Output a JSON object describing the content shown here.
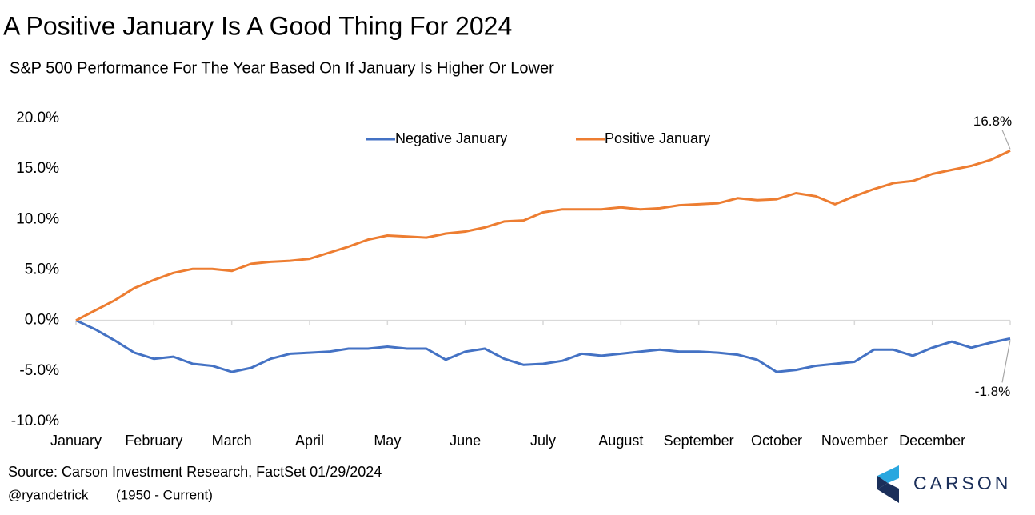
{
  "chart_data": {
    "type": "line",
    "title": "A Positive January Is A Good Thing For 2024",
    "subtitle": "S&P 500 Performance For The Year Based On If January Is Higher Or Lower",
    "categories": [
      "January",
      null,
      null,
      null,
      "February",
      null,
      null,
      null,
      "March",
      null,
      null,
      null,
      "April",
      null,
      null,
      null,
      "May",
      null,
      null,
      null,
      "June",
      null,
      null,
      null,
      "July",
      null,
      null,
      null,
      "August",
      null,
      null,
      null,
      "September",
      null,
      null,
      null,
      "October",
      null,
      null,
      null,
      "November",
      null,
      null,
      null,
      "December",
      null,
      null,
      null,
      null
    ],
    "series": [
      {
        "name": "Negative January",
        "color": "#4472c4",
        "values": [
          0,
          -0.9,
          -2.0,
          -3.2,
          -3.8,
          -3.6,
          -4.3,
          -4.5,
          -5.1,
          -4.7,
          -3.8,
          -3.3,
          -3.2,
          -3.1,
          -2.8,
          -2.8,
          -2.6,
          -2.8,
          -2.8,
          -3.9,
          -3.1,
          -2.8,
          -3.8,
          -4.4,
          -4.3,
          -4.0,
          -3.3,
          -3.5,
          -3.3,
          -3.1,
          -2.9,
          -3.1,
          -3.1,
          -3.2,
          -3.4,
          -3.9,
          -5.1,
          -4.9,
          -4.5,
          -4.3,
          -4.1,
          -2.9,
          -2.9,
          -3.5,
          -2.7,
          -2.1,
          -2.7,
          -2.2,
          -1.8
        ],
        "value_labels": [
          null,
          null,
          null,
          null,
          null,
          null,
          null,
          null,
          null,
          null,
          null,
          null,
          null,
          null,
          null,
          null,
          null,
          null,
          null,
          null,
          null,
          null,
          null,
          null,
          null,
          null,
          null,
          null,
          null,
          null,
          null,
          null,
          null,
          null,
          null,
          null,
          null,
          null,
          null,
          null,
          null,
          null,
          null,
          null,
          null,
          null,
          null,
          null,
          "-1.8%"
        ]
      },
      {
        "name": "Positive January",
        "color": "#ed7d31",
        "values": [
          0,
          1.0,
          2.0,
          3.2,
          4.0,
          4.7,
          5.1,
          5.1,
          4.9,
          5.6,
          5.8,
          5.9,
          6.1,
          6.7,
          7.3,
          8.0,
          8.4,
          8.3,
          8.2,
          8.6,
          8.8,
          9.2,
          9.8,
          9.9,
          10.7,
          11.0,
          11.0,
          11.0,
          11.2,
          11.0,
          11.1,
          11.4,
          11.5,
          11.6,
          12.1,
          11.9,
          12.0,
          12.6,
          12.3,
          11.5,
          12.3,
          13.0,
          13.6,
          13.8,
          14.5,
          14.9,
          15.3,
          15.9,
          16.8
        ],
        "value_labels": [
          null,
          null,
          null,
          null,
          null,
          null,
          null,
          null,
          null,
          null,
          null,
          null,
          null,
          null,
          null,
          null,
          null,
          null,
          null,
          null,
          null,
          null,
          null,
          null,
          null,
          null,
          null,
          null,
          null,
          null,
          null,
          null,
          null,
          null,
          null,
          null,
          null,
          null,
          null,
          null,
          null,
          null,
          null,
          null,
          null,
          null,
          null,
          null,
          "16.8%"
        ]
      }
    ],
    "ylim": [
      -10,
      20
    ],
    "yticks": [
      {
        "value": -10,
        "label": "-10.0%"
      },
      {
        "value": -5,
        "label": "-5.0%"
      },
      {
        "value": 0,
        "label": "0.0%"
      },
      {
        "value": 5,
        "label": "5.0%"
      },
      {
        "value": 10,
        "label": "10.0%"
      },
      {
        "value": 15,
        "label": "15.0%"
      },
      {
        "value": 20,
        "label": "20.0%"
      }
    ],
    "grid": false,
    "legend": "top",
    "source": "Source: Carson Investment Research, FactSet 01/29/2024",
    "author": "@ryandetrick",
    "period": "(1950 - Current)",
    "logo_text": "CARSON"
  }
}
